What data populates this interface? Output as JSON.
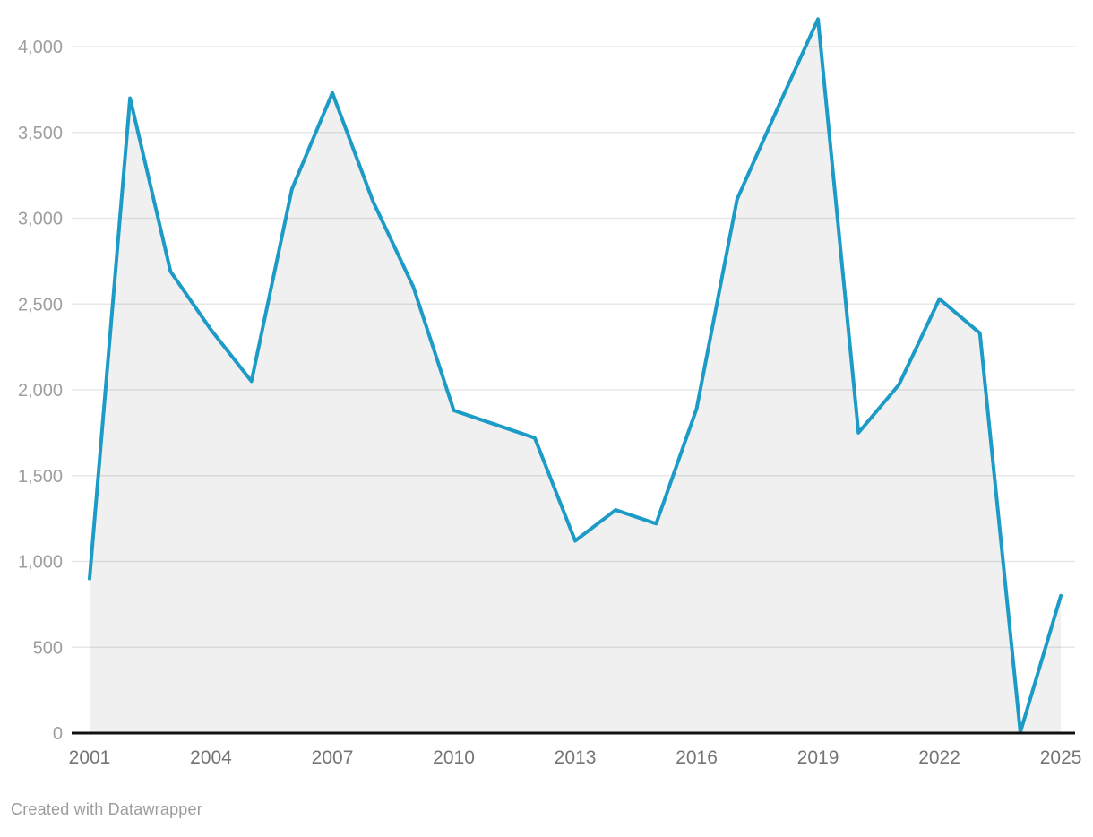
{
  "footer": {
    "credit": "Created with Datawrapper"
  },
  "colors": {
    "line": "#1d9bc7",
    "area_fill": "rgba(0,0,0,0.057)",
    "gridline": "#e8e8e8",
    "axis_line": "#111111",
    "y_label": "#9e9e9e",
    "x_label": "#757575",
    "background": "#ffffff"
  },
  "chart_data": {
    "type": "area",
    "title": "",
    "xlabel": "",
    "ylabel": "",
    "x": [
      2001,
      2002,
      2003,
      2004,
      2005,
      2006,
      2007,
      2008,
      2009,
      2010,
      2011,
      2012,
      2013,
      2014,
      2015,
      2016,
      2017,
      2018,
      2019,
      2020,
      2021,
      2022,
      2023,
      2024,
      2025
    ],
    "series": [
      {
        "name": "value",
        "values": [
          900,
          3700,
          2690,
          2350,
          2050,
          3170,
          3730,
          3100,
          2600,
          1880,
          1800,
          1720,
          1120,
          1300,
          1220,
          1890,
          3110,
          3640,
          4160,
          1750,
          2030,
          2530,
          2330,
          5,
          800
        ]
      }
    ],
    "xlim": [
      2001,
      2025
    ],
    "ylim": [
      0,
      4160
    ],
    "grid": true,
    "legend_position": "none",
    "y_ticks": [
      0,
      500,
      1000,
      1500,
      2000,
      2500,
      3000,
      3500,
      4000
    ],
    "y_tick_labels": [
      "0",
      "500",
      "1,000",
      "1,500",
      "2,000",
      "2,500",
      "3,000",
      "3,500",
      "4,000"
    ],
    "x_ticks": [
      2001,
      2004,
      2007,
      2010,
      2013,
      2016,
      2019,
      2022,
      2025
    ],
    "x_tick_labels": [
      "2001",
      "2004",
      "2007",
      "2010",
      "2013",
      "2016",
      "2019",
      "2022",
      "2025"
    ]
  }
}
